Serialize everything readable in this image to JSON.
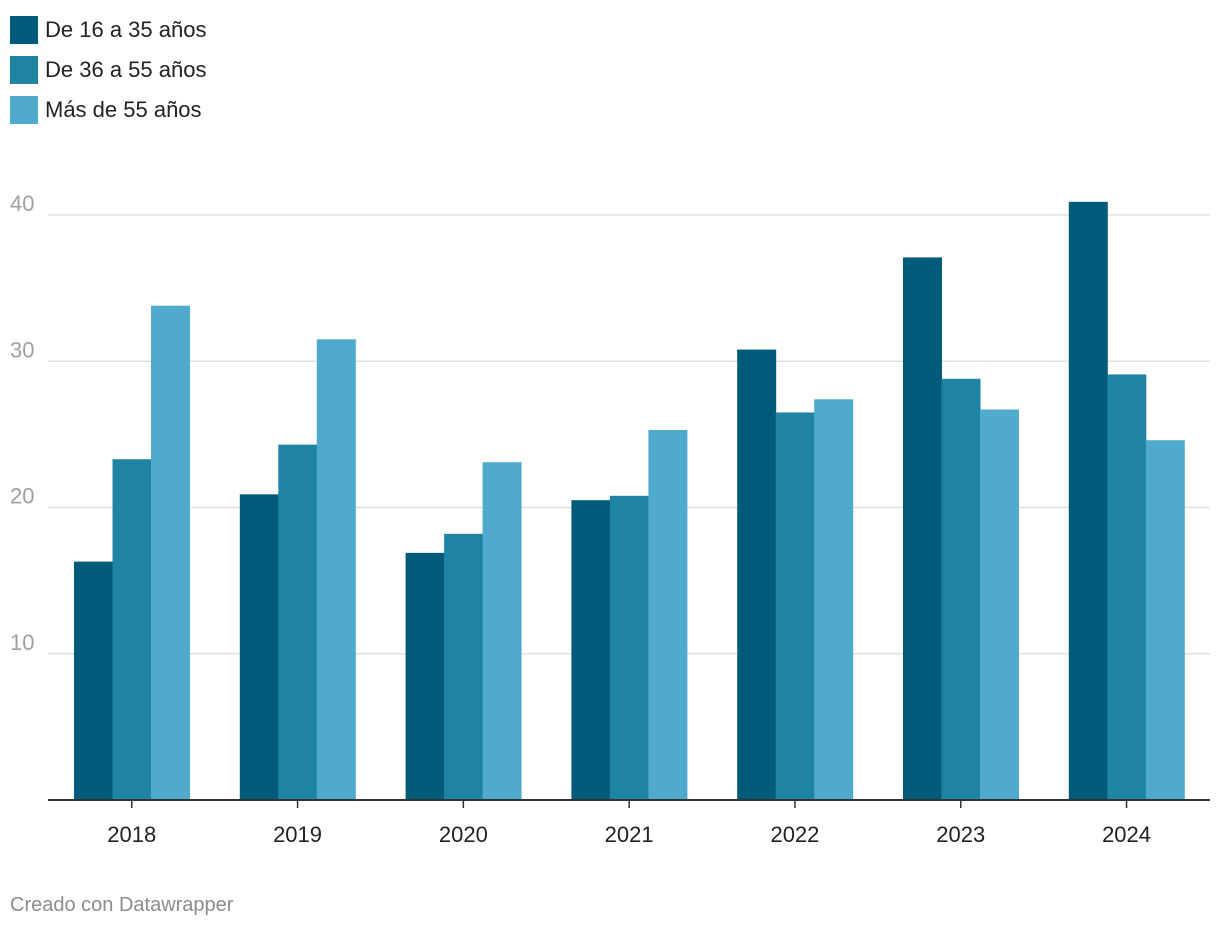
{
  "chart_data": {
    "type": "bar",
    "title": "",
    "xlabel": "",
    "ylabel": "",
    "categories": [
      "2018",
      "2019",
      "2020",
      "2021",
      "2022",
      "2023",
      "2024"
    ],
    "series": [
      {
        "name": "De 16 a 35 años",
        "color": "#005b7b",
        "values": [
          16.3,
          20.9,
          16.9,
          20.5,
          30.8,
          37.1,
          40.9
        ]
      },
      {
        "name": "De 36 a 55 años",
        "color": "#1f84a4",
        "values": [
          23.3,
          24.3,
          18.2,
          20.8,
          26.5,
          28.8,
          29.1
        ]
      },
      {
        "name": "Más de 55 años",
        "color": "#50aacd",
        "values": [
          33.8,
          31.5,
          23.1,
          25.3,
          27.4,
          26.7,
          24.6
        ]
      }
    ],
    "yticks": [
      10,
      20,
      30,
      40
    ],
    "ylim": [
      0,
      40
    ],
    "grid": true,
    "legend_position": "top-left"
  },
  "footer": {
    "credit": "Creado con Datawrapper"
  }
}
